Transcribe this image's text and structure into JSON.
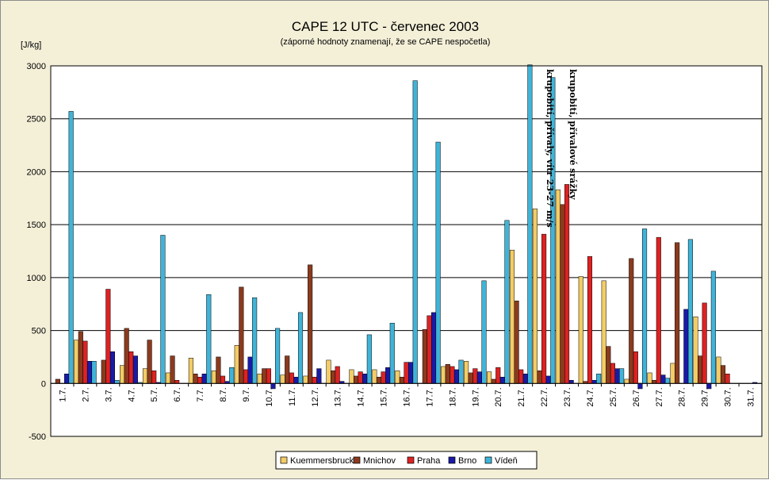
{
  "chart_data": {
    "type": "bar",
    "title": "CAPE 12 UTC - červenec 2003",
    "subtitle": "(záporné hodnoty znamenají, že se CAPE nespočetla)",
    "ylabel": "[J/kg]",
    "ylim": [
      -500,
      3000
    ],
    "yticks": [
      -500,
      0,
      500,
      1000,
      1500,
      2000,
      2500,
      3000
    ],
    "grid": true,
    "legend_position": "bottom",
    "categories": [
      "1.7.",
      "2.7.",
      "3.7.",
      "4.7.",
      "5.7.",
      "6.7.",
      "7.7.",
      "8.7.",
      "9.7.",
      "10.7.",
      "11.7.",
      "12.7.",
      "13.7.",
      "14.7.",
      "15.7.",
      "16.7.",
      "17.7.",
      "18.7.",
      "19.7.",
      "20.7.",
      "21.7.",
      "22.7.",
      "23.7.",
      "24.7.",
      "25.7.",
      "26.7.",
      "27.7.",
      "28.7.",
      "29.7.",
      "30.7.",
      "31.7."
    ],
    "series": [
      {
        "name": "Kuemmersbruck",
        "color": "#f2cc66",
        "values": [
          0,
          410,
          0,
          170,
          140,
          100,
          240,
          120,
          360,
          90,
          80,
          70,
          220,
          130,
          130,
          120,
          0,
          160,
          210,
          110,
          1260,
          1650,
          1830,
          1010,
          970,
          40,
          100,
          190,
          630,
          250,
          0
        ]
      },
      {
        "name": "Mnichov",
        "color": "#8b3a1e",
        "values": [
          40,
          490,
          220,
          520,
          410,
          260,
          90,
          250,
          910,
          140,
          260,
          1120,
          120,
          70,
          60,
          60,
          510,
          180,
          100,
          40,
          780,
          120,
          1690,
          20,
          350,
          1180,
          30,
          1330,
          260,
          170,
          0
        ]
      },
      {
        "name": "Praha",
        "color": "#dd2222",
        "values": [
          0,
          400,
          890,
          300,
          120,
          30,
          60,
          70,
          130,
          140,
          100,
          60,
          160,
          110,
          110,
          200,
          640,
          160,
          140,
          150,
          130,
          1410,
          1880,
          1200,
          190,
          300,
          1380,
          0,
          760,
          90,
          0
        ]
      },
      {
        "name": "Brno",
        "color": "#1a1aa8",
        "values": [
          90,
          210,
          300,
          260,
          10,
          0,
          90,
          20,
          250,
          -50,
          60,
          140,
          20,
          90,
          150,
          200,
          670,
          130,
          110,
          60,
          90,
          70,
          30,
          30,
          140,
          -50,
          80,
          700,
          -50,
          0,
          10
        ]
      },
      {
        "name": "Vídeň",
        "color": "#40b4d8",
        "values": [
          2570,
          210,
          30,
          10,
          1400,
          0,
          840,
          150,
          810,
          520,
          670,
          0,
          0,
          460,
          570,
          2860,
          2280,
          220,
          970,
          1540,
          3010,
          2890,
          0,
          90,
          140,
          1460,
          50,
          1360,
          1060,
          0,
          0
        ]
      }
    ],
    "annotations": [
      {
        "text": "krupobití, přívaly, vítr 23-27 m/s",
        "category": "22.7."
      },
      {
        "text": "krupobití, přívalové srážky",
        "category": "23.7."
      }
    ]
  }
}
